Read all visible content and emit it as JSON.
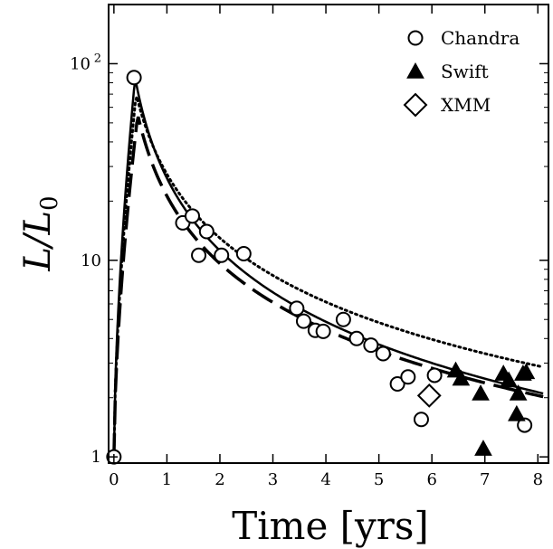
{
  "chart_data": {
    "type": "scatter",
    "xlabel": "Time [yrs]",
    "ylabel_main": "L",
    "ylabel_sub": "0",
    "xlim": [
      -0.1,
      8.2
    ],
    "ylim": [
      0.93,
      200
    ],
    "yscale": "log",
    "grid": false,
    "legend_position": "top-right",
    "x_ticks": [
      {
        "value": 0,
        "label": "0"
      },
      {
        "value": 1,
        "label": "1"
      },
      {
        "value": 2,
        "label": "2"
      },
      {
        "value": 3,
        "label": "3"
      },
      {
        "value": 4,
        "label": "4"
      },
      {
        "value": 5,
        "label": "5"
      },
      {
        "value": 6,
        "label": "6"
      },
      {
        "value": 7,
        "label": "7"
      },
      {
        "value": 8,
        "label": "8"
      }
    ],
    "y_ticks": [
      {
        "value": 1,
        "label": "1"
      },
      {
        "value": 10,
        "label": "10"
      },
      {
        "value": 100,
        "label": "10",
        "sup": "2"
      }
    ],
    "series": [
      {
        "name": "Chandra",
        "marker": "circle",
        "points": [
          [
            0.0,
            1.0
          ],
          [
            0.38,
            85
          ],
          [
            1.3,
            15.5
          ],
          [
            1.48,
            16.8
          ],
          [
            1.6,
            10.6
          ],
          [
            1.75,
            14.0
          ],
          [
            2.03,
            10.6
          ],
          [
            2.45,
            10.8
          ],
          [
            3.45,
            5.7
          ],
          [
            3.58,
            4.9
          ],
          [
            3.8,
            4.4
          ],
          [
            3.95,
            4.35
          ],
          [
            4.33,
            5.0
          ],
          [
            4.58,
            4.0
          ],
          [
            4.85,
            3.7
          ],
          [
            5.08,
            3.35
          ],
          [
            5.35,
            2.35
          ],
          [
            5.55,
            2.55
          ],
          [
            5.8,
            1.55
          ],
          [
            6.05,
            2.6
          ],
          [
            7.75,
            1.45
          ]
        ]
      },
      {
        "name": "Swift",
        "marker": "triangle",
        "points": [
          [
            6.45,
            2.75
          ],
          [
            6.55,
            2.5
          ],
          [
            6.92,
            2.1
          ],
          [
            6.97,
            1.1
          ],
          [
            7.35,
            2.65
          ],
          [
            7.45,
            2.45
          ],
          [
            7.6,
            1.65
          ],
          [
            7.63,
            2.1
          ],
          [
            7.72,
            2.65
          ],
          [
            7.78,
            2.7
          ]
        ]
      },
      {
        "name": "XMM",
        "marker": "diamond",
        "points": [
          [
            5.95,
            2.05
          ]
        ]
      }
    ],
    "model_curves": [
      {
        "style": "solid",
        "peak_time": 0.4,
        "peak": 85,
        "decay_index": 1.18,
        "t_scale": 0.35
      },
      {
        "style": "dotted",
        "peak_time": 0.42,
        "peak": 70,
        "decay_index": 1.08,
        "t_scale": 0.42
      },
      {
        "style": "dashed",
        "peak_time": 0.45,
        "peak": 55,
        "decay_index": 1.1,
        "t_scale": 0.4
      }
    ]
  }
}
